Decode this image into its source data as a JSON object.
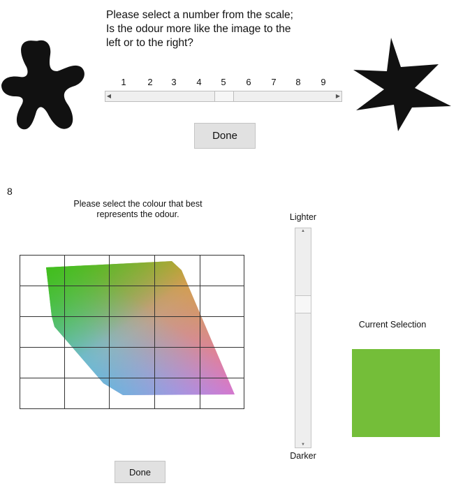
{
  "odour_shape_question": {
    "prompt_lines": [
      "Please select a number from the scale;",
      "Is the odour more like the image to the",
      "left or to the right?"
    ],
    "scale_numbers": [
      "1",
      "2",
      "3",
      "4",
      "5",
      "6",
      "7",
      "8",
      "9"
    ],
    "scale_value": 5,
    "done_label": "Done"
  },
  "colour_question": {
    "question_number": "8",
    "prompt_lines": [
      "Please select the colour that best",
      "represents the odour."
    ],
    "lighter_label": "Lighter",
    "darker_label": "Darker",
    "lightness_slider_fraction": 0.32,
    "current_selection_label": "Current Selection",
    "current_selection_color": "#74be39",
    "done_label": "Done"
  },
  "icons": {
    "left_shape": "rounded-blob-icon",
    "right_shape": "spiky-star-icon"
  }
}
